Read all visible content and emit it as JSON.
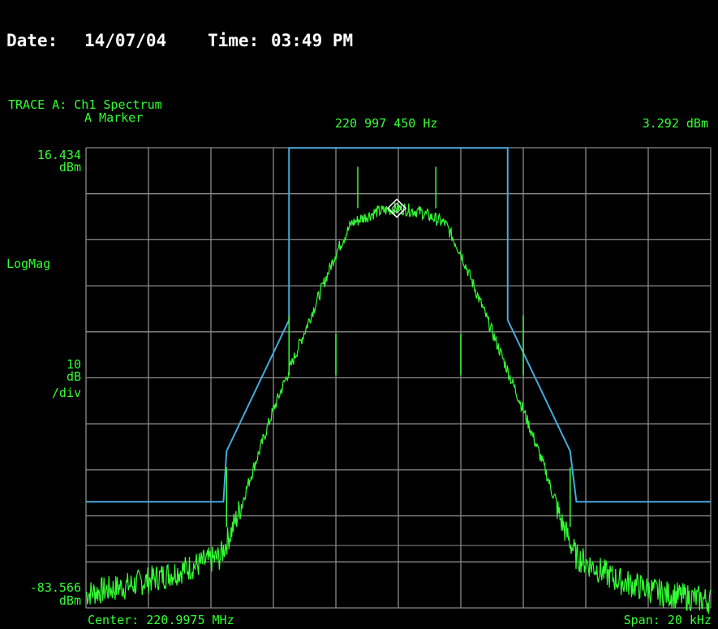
{
  "header": {
    "date_label": "Date:",
    "date_value": "14/07/04",
    "time_label": "Time:",
    "time_value": "03:49 PM"
  },
  "trace": {
    "title": "TRACE A: Ch1 Spectrum",
    "marker_label": "A Marker",
    "marker_freq": "220 997 450 Hz",
    "marker_level": "3.292 dBm"
  },
  "scale": {
    "top_value": "16.434",
    "top_unit": "dBm",
    "format": "LogMag",
    "div_value": "10",
    "div_unit": "dB",
    "div_suffix": "/div",
    "bottom_value": "-83.566",
    "bottom_unit": "dBm"
  },
  "footer": {
    "center": "Center: 220.9975 MHz",
    "span": "Span: 20 kHz"
  },
  "colors": {
    "trace": "#33ff33",
    "mask": "#44aadd",
    "grid": "#8a8a8a",
    "text": "#33ff33",
    "header": "#ffffff"
  },
  "chart_data": {
    "type": "line",
    "xlim_khz": [
      220987.5,
      221007.5
    ],
    "ylim": [
      -83.566,
      16.434
    ],
    "grid": true,
    "marker": {
      "x_khz": 220997.45,
      "y": 3.292
    },
    "series": [
      {
        "role": "spectrum",
        "x_khz": [
          220987.5,
          220989.0,
          220990.5,
          220991.8,
          220992.3,
          220992.8,
          220993.5,
          220994.5,
          220995.5,
          220996.0,
          220996.8,
          220997.5,
          220998.2,
          220999.0,
          220999.5,
          221000.5,
          221001.5,
          221002.2,
          221002.7,
          221003.2,
          221004.5,
          221006.0,
          221007.5
        ],
        "y": [
          -80.5,
          -78.5,
          -75.5,
          -72.5,
          -64.5,
          -54.5,
          -40.5,
          -23.5,
          -6.5,
          0.0,
          2.5,
          3.3,
          2.5,
          0.0,
          -6.5,
          -23.5,
          -40.5,
          -53.5,
          -64.5,
          -72.5,
          -77.5,
          -80.5,
          -82.0
        ]
      },
      {
        "role": "spectrum-spurs",
        "x_khz": [
          220992.0,
          220994.0,
          220995.5,
          220996.2,
          220998.7,
          220999.5,
          221001.5,
          221003.0
        ],
        "y": [
          -66.0,
          -33.0,
          -33.0,
          3.3,
          3.3,
          -33.0,
          -33.0,
          -66.0
        ]
      },
      {
        "role": "mask",
        "x_khz": [
          220987.5,
          220991.9,
          220992.0,
          220994.0,
          220994.0,
          220997.5,
          221001.0,
          221001.0,
          221003.0,
          221003.2,
          221007.5
        ],
        "y": [
          -60.5,
          -60.5,
          -49.5,
          -21.0,
          16.4,
          16.4,
          16.4,
          -21.0,
          -49.5,
          -60.5,
          -60.5
        ]
      }
    ]
  }
}
